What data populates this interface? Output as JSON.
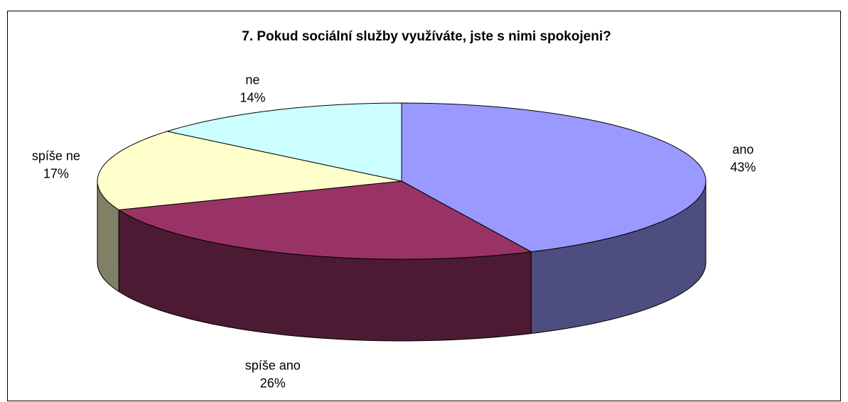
{
  "chart_data": {
    "type": "pie",
    "title": "7. Pokud sociální služby využíváte, jste s nimi spokojeni?",
    "categories": [
      "ano",
      "spíše ano",
      "spíše ne",
      "ne"
    ],
    "values": [
      43,
      26,
      17,
      14
    ],
    "value_labels": [
      "43%",
      "26%",
      "17%",
      "14%"
    ],
    "colors": [
      "#9999ff",
      "#993366",
      "#ffffcc",
      "#ccffff"
    ]
  }
}
